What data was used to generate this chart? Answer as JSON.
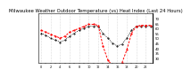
{
  "title": "Milwaukee Weather Outdoor Temperature (vs) Heat Index (Last 24 Hours)",
  "title_fontsize": 3.8,
  "background_color": "#ffffff",
  "line1_color": "#000000",
  "line2_color": "#ff0000",
  "ylim": [
    25,
    75
  ],
  "ytick_values": [
    30,
    35,
    40,
    45,
    50,
    55,
    60,
    65,
    70
  ],
  "ytick_labels": [
    "30",
    "35",
    "40",
    "45",
    "50",
    "55",
    "60",
    "65",
    "70"
  ],
  "grid_color": "#bbbbbb",
  "num_points": 24,
  "hours": [
    0,
    1,
    2,
    3,
    4,
    5,
    6,
    7,
    8,
    9,
    10,
    11,
    12,
    13,
    14,
    15,
    16,
    17,
    18,
    19,
    20,
    21,
    22,
    23
  ],
  "temp": [
    55,
    53,
    50,
    48,
    46,
    48,
    52,
    55,
    58,
    60,
    62,
    62,
    62,
    55,
    50,
    45,
    42,
    44,
    50,
    58,
    62,
    62,
    62,
    62
  ],
  "heat": [
    58,
    56,
    54,
    52,
    50,
    52,
    56,
    58,
    60,
    62,
    64,
    64,
    63,
    42,
    28,
    22,
    20,
    25,
    38,
    55,
    62,
    63,
    63,
    63
  ]
}
